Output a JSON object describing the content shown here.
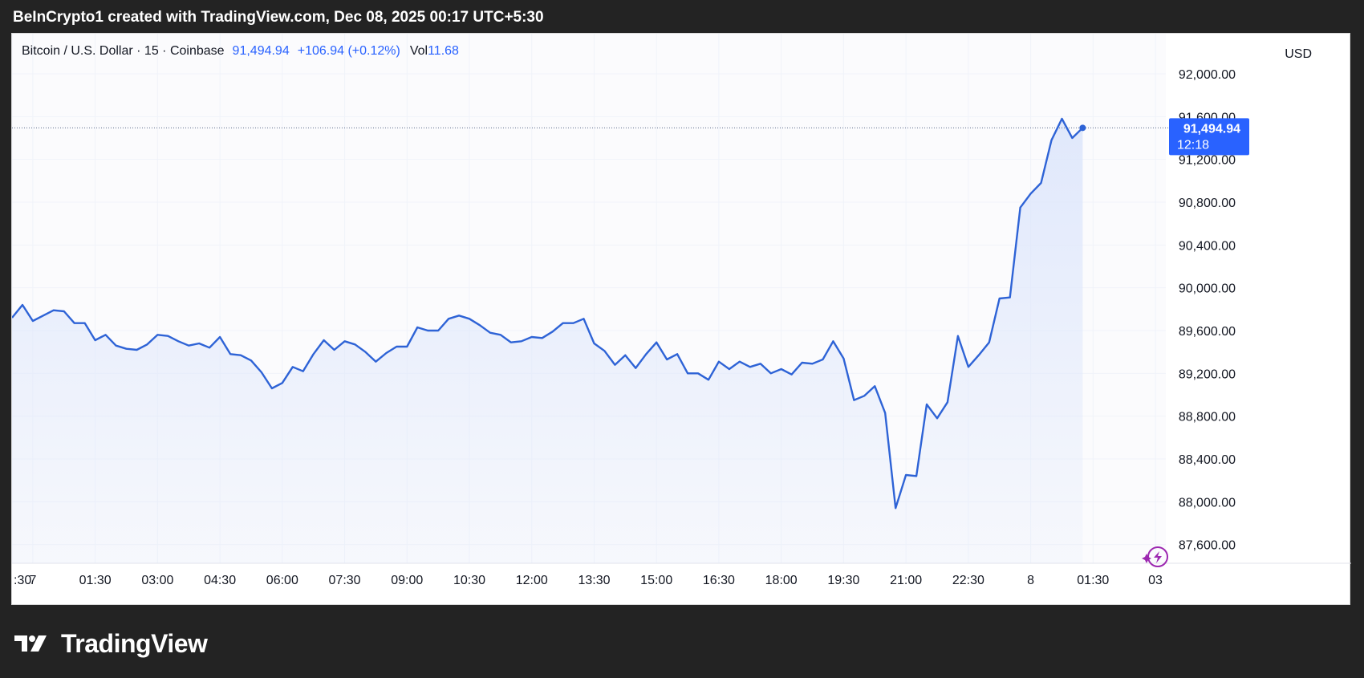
{
  "header": {
    "title": "BeInCrypto1 created with TradingView.com, Dec 08, 2025 00:17 UTC+5:30"
  },
  "legend": {
    "symbol": "Bitcoin / U.S. Dollar · 15 · Coinbase",
    "price": "91,494.94",
    "change": "+106.94 (+0.12%)",
    "volume_label": "Vol",
    "volume_value": "11.68"
  },
  "price_axis": {
    "currency": "USD",
    "current_price_label": "91,494.94",
    "countdown_label": "12:18"
  },
  "footer": {
    "brand": "TradingView"
  },
  "colors": {
    "line": "#2e63d6",
    "badge": "#2962ff",
    "area_top": "#dde6fb",
    "grid": "#f0f3fa",
    "background": "#232323"
  },
  "icons": {
    "brand_logo": "tradingview-logo-icon",
    "realtime": "lightning-sparkle-icon"
  },
  "chart_data": {
    "type": "area",
    "title": "Bitcoin / U.S. Dollar · 15 · Coinbase",
    "xlabel": "",
    "ylabel": "",
    "ylim": [
      87500,
      92300
    ],
    "y_ticks": [
      92000,
      91600,
      91200,
      90800,
      90400,
      90000,
      89600,
      89200,
      88800,
      88400,
      88000,
      87600
    ],
    "y_tick_labels": [
      "92,000.00",
      "91,600.00",
      "91,200.00",
      "90,800.00",
      "90,400.00",
      "90,000.00",
      "89,600.00",
      "89,200.00",
      "88,800.00",
      "88,400.00",
      "88,000.00",
      "87,600.00"
    ],
    "x_tick_labels": [
      ":30",
      "7",
      "01:30",
      "03:00",
      "04:30",
      "06:00",
      "07:30",
      "09:00",
      "10:30",
      "12:00",
      "13:30",
      "15:00",
      "16:30",
      "18:00",
      "19:30",
      "21:00",
      "22:30",
      "8",
      "01:30",
      "03"
    ],
    "x_tick_hours": [
      -0.5,
      0,
      1.5,
      3,
      4.5,
      6,
      7.5,
      9,
      10.5,
      12,
      13.5,
      15,
      16.5,
      18,
      19.5,
      21,
      22.5,
      24,
      25.5,
      27
    ],
    "x_range_hours": [
      -0.5,
      27.25
    ],
    "series": [
      {
        "interval_hours": 0.25,
        "start_hour": -0.5,
        "values": [
          89720,
          89840,
          89690,
          89740,
          89790,
          89780,
          89670,
          89670,
          89510,
          89560,
          89460,
          89430,
          89420,
          89470,
          89560,
          89550,
          89500,
          89460,
          89480,
          89440,
          89540,
          89380,
          89370,
          89320,
          89210,
          89060,
          89110,
          89260,
          89220,
          89380,
          89510,
          89420,
          89500,
          89470,
          89400,
          89310,
          89390,
          89450,
          89450,
          89630,
          89600,
          89600,
          89710,
          89740,
          89710,
          89650,
          89580,
          89560,
          89490,
          89500,
          89540,
          89530,
          89590,
          89670,
          89670,
          89710,
          89480,
          89410,
          89280,
          89370,
          89250,
          89380,
          89490,
          89330,
          89380,
          89200,
          89200,
          89140,
          89310,
          89240,
          89310,
          89260,
          89290,
          89200,
          89240,
          89190,
          89300,
          89290,
          89330,
          89500,
          89340,
          88950,
          88990,
          89080,
          88830,
          87940,
          88250,
          88240,
          88910,
          88780,
          88930,
          89550,
          89260,
          89370,
          89490,
          89900,
          89910,
          90750,
          90880,
          90980,
          91380,
          91580,
          91400,
          91495
        ],
        "last_value": 91494.94
      }
    ],
    "last_price_line": true,
    "grid": true
  }
}
